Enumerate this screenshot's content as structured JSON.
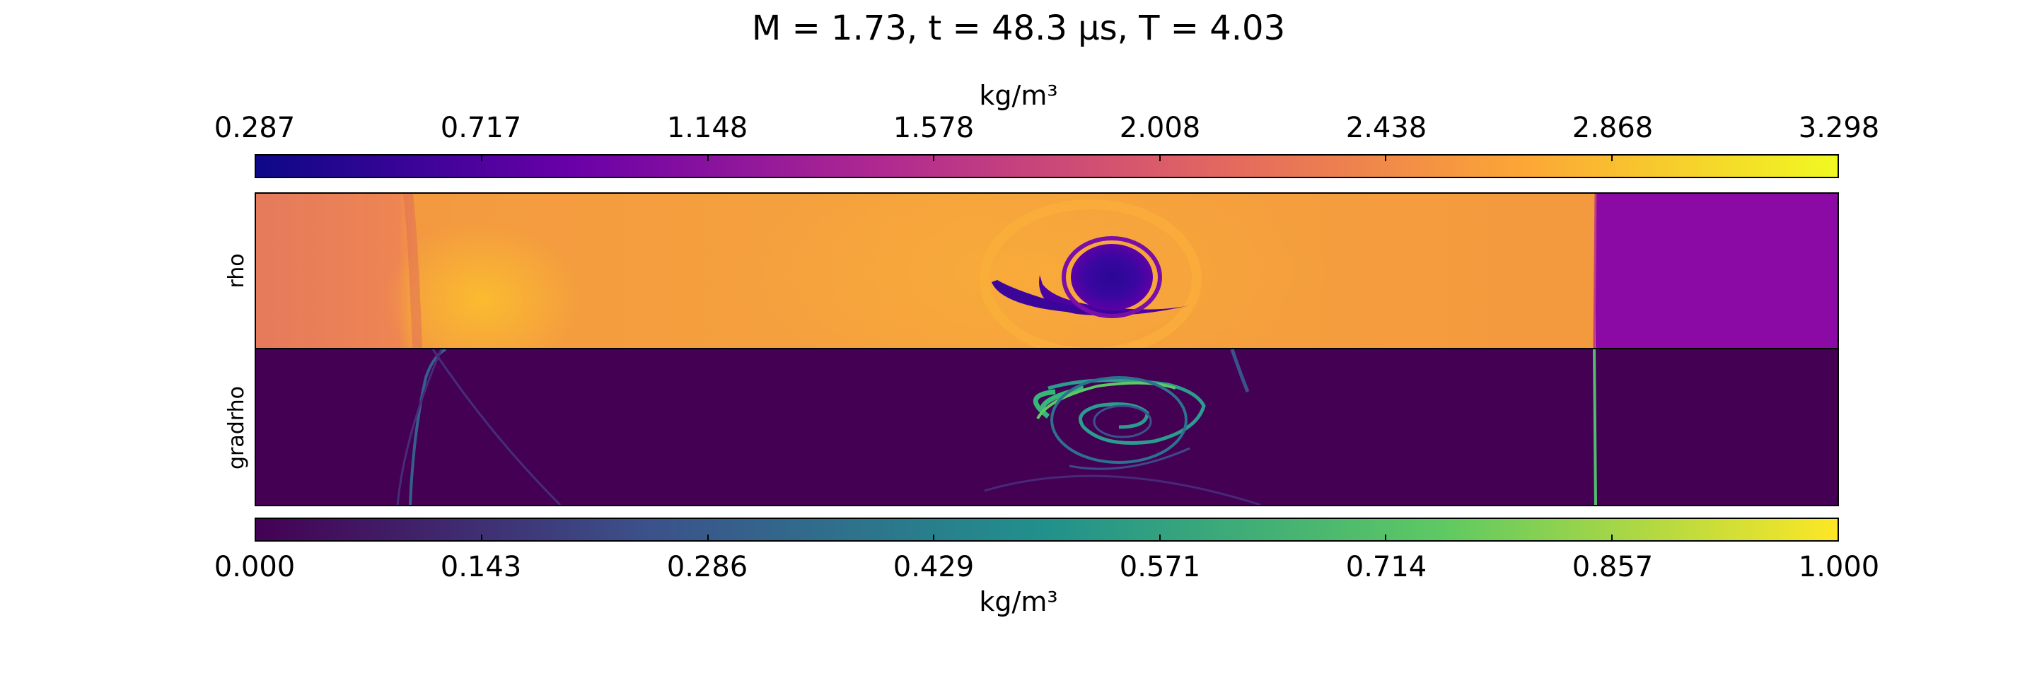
{
  "title": "M = 1.73, t = 48.3 μs, T = 4.03",
  "chart_data": [
    {
      "type": "heatmap",
      "ylabel": "rho",
      "colorbar": {
        "label": "kg/m³",
        "position": "top",
        "colormap": "plasma",
        "range": [
          0.287,
          3.298
        ],
        "ticks": [
          "0.287",
          "0.717",
          "1.148",
          "1.578",
          "2.008",
          "2.438",
          "2.868",
          "3.298"
        ],
        "colors": [
          "#0d0887",
          "#6a00a8",
          "#b12a90",
          "#e16462",
          "#fca636",
          "#f0f921"
        ]
      },
      "field_summary": {
        "ambient_value": 2.6,
        "pre_shock_value": 1.2,
        "vortex_core_value": 0.5
      }
    },
    {
      "type": "heatmap",
      "ylabel": "gradrho",
      "colorbar": {
        "label": "kg/m³",
        "position": "bottom",
        "colormap": "viridis",
        "range": [
          0.0,
          1.0
        ],
        "ticks": [
          "0.000",
          "0.143",
          "0.286",
          "0.429",
          "0.571",
          "0.714",
          "0.857",
          "1.000"
        ],
        "colors": [
          "#440154",
          "#3b528b",
          "#21918c",
          "#5ec962",
          "#fde725"
        ]
      },
      "field_summary": {
        "background_value": 0.02,
        "shock_value": 0.55,
        "vortex_edge_value": 0.6
      }
    }
  ]
}
